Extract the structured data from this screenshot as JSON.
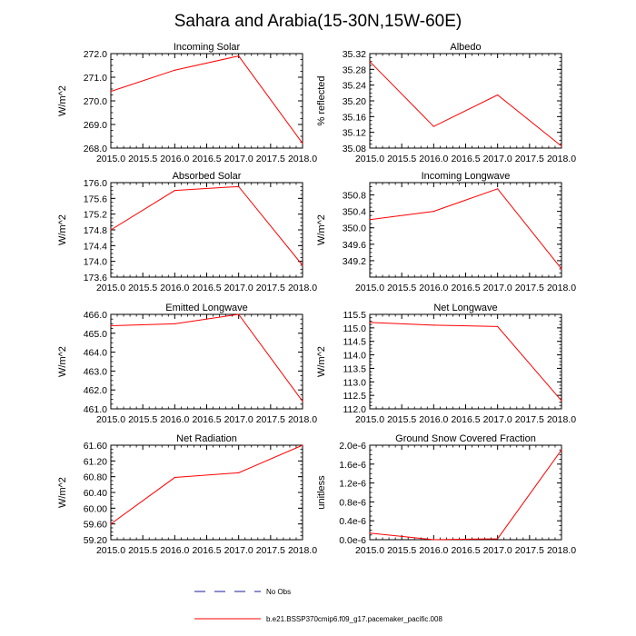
{
  "page_title": "Sahara and Arabia(15-30N,15W-60E)",
  "colors": {
    "model": "#ff0000",
    "obs": "#1a1a9a",
    "axis": "#000000"
  },
  "legend": {
    "items": [
      {
        "label": "No Obs",
        "style": "dashed",
        "color": "#1a1a9a"
      },
      {
        "label": "b.e21.BSSP370cmip6.f09_g17.pacemaker_pacific.008",
        "style": "solid",
        "color": "#ff0000"
      }
    ]
  },
  "chart_data": [
    {
      "type": "line",
      "title": "Incoming Solar",
      "xlabel": "",
      "ylabel": "W/m^2",
      "x": [
        2015.0,
        2016.0,
        2017.0,
        2018.0
      ],
      "xlim": [
        2015.0,
        2018.0
      ],
      "xticks": [
        "2015.0",
        "2015.5",
        "2016.0",
        "2016.5",
        "2017.0",
        "2017.5",
        "2018.0"
      ],
      "ylim": [
        268.0,
        272.0
      ],
      "yticks": [
        "268.0",
        "269.0",
        "270.0",
        "271.0",
        "272.0"
      ],
      "series": [
        {
          "name": "b.e21.BSSP370cmip6.f09_g17.pacemaker_pacific.008",
          "values": [
            270.4,
            271.3,
            271.9,
            268.2
          ]
        }
      ]
    },
    {
      "type": "line",
      "title": "Albedo",
      "xlabel": "",
      "ylabel": "% reflected",
      "x": [
        2015.0,
        2016.0,
        2017.0,
        2018.0
      ],
      "xlim": [
        2015.0,
        2018.0
      ],
      "xticks": [
        "2015.0",
        "2015.5",
        "2016.0",
        "2016.5",
        "2017.0",
        "2017.5",
        "2018.0"
      ],
      "ylim": [
        35.08,
        35.32
      ],
      "yticks": [
        "35.08",
        "35.12",
        "35.16",
        "35.20",
        "35.24",
        "35.28",
        "35.32"
      ],
      "series": [
        {
          "name": "b.e21.BSSP370cmip6.f09_g17.pacemaker_pacific.008",
          "values": [
            35.3,
            35.135,
            35.215,
            35.085
          ]
        }
      ]
    },
    {
      "type": "line",
      "title": "Absorbed Solar",
      "xlabel": "",
      "ylabel": "W/m^2",
      "x": [
        2015.0,
        2016.0,
        2017.0,
        2018.0
      ],
      "xlim": [
        2015.0,
        2018.0
      ],
      "xticks": [
        "2015.0",
        "2015.5",
        "2016.0",
        "2016.5",
        "2017.0",
        "2017.5",
        "2018.0"
      ],
      "ylim": [
        173.6,
        176.0
      ],
      "yticks": [
        "173.6",
        "174.0",
        "174.4",
        "174.8",
        "175.2",
        "175.6",
        "176.0"
      ],
      "series": [
        {
          "name": "b.e21.BSSP370cmip6.f09_g17.pacemaker_pacific.008",
          "values": [
            174.8,
            175.8,
            175.9,
            173.9
          ]
        }
      ]
    },
    {
      "type": "line",
      "title": "Incoming Longwave",
      "xlabel": "",
      "ylabel": "W/m^2",
      "x": [
        2015.0,
        2016.0,
        2017.0,
        2018.0
      ],
      "xlim": [
        2015.0,
        2018.0
      ],
      "xticks": [
        "2015.0",
        "2015.5",
        "2016.0",
        "2016.5",
        "2017.0",
        "2017.5",
        "2018.0"
      ],
      "ylim": [
        348.8,
        351.1
      ],
      "yticks": [
        "349.2",
        "349.6",
        "350.0",
        "350.4",
        "350.8"
      ],
      "series": [
        {
          "name": "b.e21.BSSP370cmip6.f09_g17.pacemaker_pacific.008",
          "values": [
            350.2,
            350.4,
            350.95,
            349.0
          ]
        }
      ]
    },
    {
      "type": "line",
      "title": "Emitted Longwave",
      "xlabel": "",
      "ylabel": "W/m^2",
      "x": [
        2015.0,
        2016.0,
        2017.0,
        2018.0
      ],
      "xlim": [
        2015.0,
        2018.0
      ],
      "xticks": [
        "2015.0",
        "2015.5",
        "2016.0",
        "2016.5",
        "2017.0",
        "2017.5",
        "2018.0"
      ],
      "ylim": [
        461.0,
        466.0
      ],
      "yticks": [
        "461.0",
        "462.0",
        "463.0",
        "464.0",
        "465.0",
        "466.0"
      ],
      "series": [
        {
          "name": "b.e21.BSSP370cmip6.f09_g17.pacemaker_pacific.008",
          "values": [
            465.4,
            465.5,
            466.0,
            461.4
          ]
        }
      ]
    },
    {
      "type": "line",
      "title": "Net Longwave",
      "xlabel": "",
      "ylabel": "W/m^2",
      "x": [
        2015.0,
        2016.0,
        2017.0,
        2018.0
      ],
      "xlim": [
        2015.0,
        2018.0
      ],
      "xticks": [
        "2015.0",
        "2015.5",
        "2016.0",
        "2016.5",
        "2017.0",
        "2017.5",
        "2018.0"
      ],
      "ylim": [
        112.0,
        115.5
      ],
      "yticks": [
        "112.0",
        "112.5",
        "113.0",
        "113.5",
        "114.0",
        "114.5",
        "115.0",
        "115.5"
      ],
      "series": [
        {
          "name": "b.e21.BSSP370cmip6.f09_g17.pacemaker_pacific.008",
          "values": [
            115.2,
            115.1,
            115.05,
            112.3
          ]
        }
      ]
    },
    {
      "type": "line",
      "title": "Net Radiation",
      "xlabel": "",
      "ylabel": "W/m^2",
      "x": [
        2015.0,
        2016.0,
        2017.0,
        2018.0
      ],
      "xlim": [
        2015.0,
        2018.0
      ],
      "xticks": [
        "2015.0",
        "2015.5",
        "2016.0",
        "2016.5",
        "2017.0",
        "2017.5",
        "2018.0"
      ],
      "ylim": [
        59.2,
        61.6
      ],
      "yticks": [
        "59.20",
        "59.60",
        "60.00",
        "60.40",
        "60.80",
        "61.20",
        "61.60"
      ],
      "series": [
        {
          "name": "b.e21.BSSP370cmip6.f09_g17.pacemaker_pacific.008",
          "values": [
            59.6,
            60.78,
            60.9,
            61.6
          ]
        }
      ]
    },
    {
      "type": "line",
      "title": "Ground Snow Covered Fraction",
      "xlabel": "",
      "ylabel": "unitless",
      "x": [
        2015.0,
        2016.0,
        2017.0,
        2018.0
      ],
      "xlim": [
        2015.0,
        2018.0
      ],
      "xticks": [
        "2015.0",
        "2015.5",
        "2016.0",
        "2016.5",
        "2017.0",
        "2017.5",
        "2018.0"
      ],
      "ylim": [
        0.0,
        2e-06
      ],
      "yticks": [
        "0.0e-6",
        "0.4e-6",
        "0.8e-6",
        "1.2e-6",
        "1.6e-6",
        "2.0e-6"
      ],
      "series": [
        {
          "name": "b.e21.BSSP370cmip6.f09_g17.pacemaker_pacific.008",
          "values": [
            1.4e-07,
            0.0,
            2e-08,
            1.9e-06
          ]
        }
      ]
    }
  ]
}
